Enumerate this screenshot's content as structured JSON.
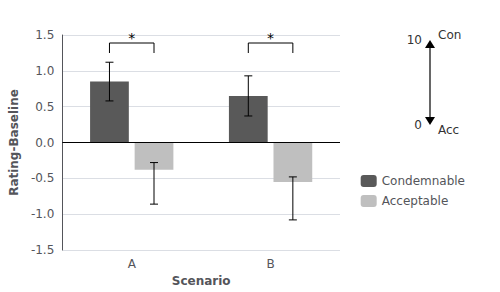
{
  "chart_data": {
    "type": "bar",
    "categories": [
      "A",
      "B"
    ],
    "xlabel": "Scenario",
    "ylabel": "Rating-Baseline",
    "ylim": [
      -1.5,
      1.5
    ],
    "yticks": [
      -1.5,
      {
        "value": -1.0,
        "label": "-1.0"
      },
      -0.5,
      {
        "value": 0.0,
        "label": "0.0"
      },
      0.5,
      {
        "value": 1.0,
        "label": "1.0"
      },
      1.5
    ],
    "series": [
      {
        "name": "Condemnable",
        "color": "#595959",
        "values": [
          0.85,
          0.65
        ],
        "errors": [
          0.27,
          0.28
        ]
      },
      {
        "name": "Acceptable",
        "color": "#bfbfbf",
        "values": [
          -0.38,
          -0.55
        ],
        "errors_up": [
          0.1,
          0.07
        ],
        "errors_down": [
          0.48,
          0.53
        ]
      }
    ],
    "legend": "right",
    "annotations": {
      "significance": [
        {
          "category": "A",
          "text": "*"
        },
        {
          "category": "B",
          "text": "*"
        }
      ],
      "arrow": {
        "top_value": 10,
        "top_label": "Con",
        "bottom_value": 0,
        "bottom_label": "Acc"
      }
    }
  }
}
